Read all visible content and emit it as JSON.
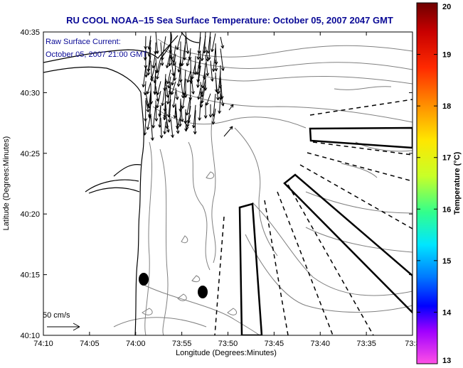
{
  "title": "RU COOL  NOAA–15  Sea Surface Temperature:  October 05, 2007 2047 GMT",
  "legend": {
    "line1": "Raw Surface Current:",
    "line2": "October 05, 2007 21:00 GMT",
    "scale_label": "50 cm/s"
  },
  "axes": {
    "xlabel": "Longitude (Degrees:Minutes)",
    "ylabel": "Latitude (Degrees:Minutes)",
    "xticks": [
      "74:10",
      "74:05",
      "74:00",
      "73:55",
      "73:50",
      "73:45",
      "73:40",
      "73:35",
      "73:3"
    ],
    "yticks": [
      "40:35",
      "40:30",
      "40:25",
      "40:20",
      "40:15",
      "40:10"
    ]
  },
  "colorbar": {
    "label": "Temperature (°C)",
    "ticks": [
      "20",
      "19",
      "18",
      "17",
      "16",
      "15",
      "14",
      "13"
    ],
    "range": [
      13,
      20
    ]
  },
  "colors": {
    "title": "#0a0a96",
    "coast": "#000000",
    "bathymetry": "#808080",
    "vectors": "#000000"
  }
}
